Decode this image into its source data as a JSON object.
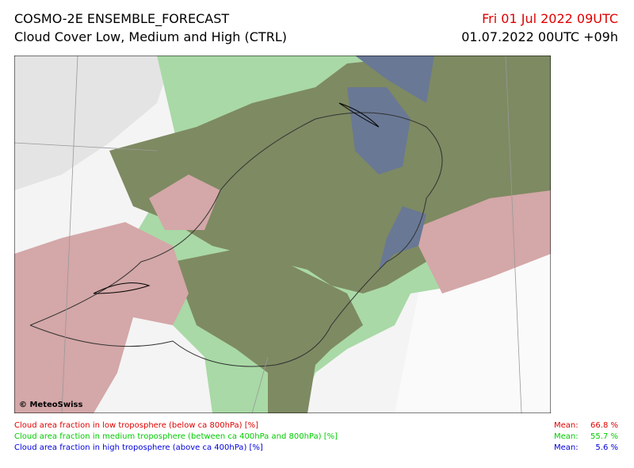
{
  "header": {
    "title": "COSMO-2E ENSEMBLE_FORECAST",
    "subtitle": "Cloud Cover Low, Medium and High (CTRL)",
    "valid_time": "Fri 01 Jul 2022 09UTC",
    "run_time": "01.07.2022 00UTC +09h"
  },
  "map": {
    "copyright": "© MeteoSwiss"
  },
  "legend": [
    {
      "text": "Cloud area fraction in low troposphere (below ca 800hPa) [%]",
      "mean_label": "Mean:",
      "mean": "66.8 %"
    },
    {
      "text": "Cloud area fraction in medium troposphere (between ca 400hPa and 800hPa) [%]",
      "mean_label": "Mean:",
      "mean": "55.7 %"
    },
    {
      "text": "Cloud area fraction in high troposphere (above ca 400hPa) [%]",
      "mean_label": "Mean:",
      "mean": "5.6 %"
    }
  ]
}
